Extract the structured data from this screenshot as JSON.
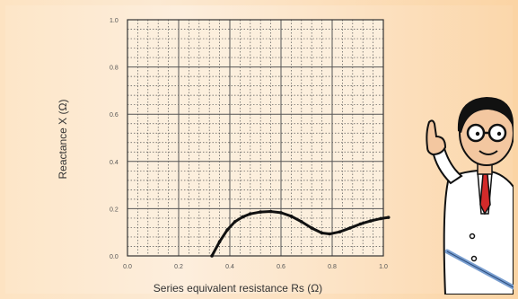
{
  "chart_data": {
    "type": "line",
    "title": "",
    "xlabel": "Series equivalent resistance  Rs  (Ω)",
    "ylabel": "Reactance  X  (Ω)",
    "xlim": [
      0,
      1.0
    ],
    "ylim": [
      0,
      1.0
    ],
    "x_ticks": [
      "0.0",
      "0.2",
      "0.4",
      "0.6",
      "0.8",
      "1.0"
    ],
    "y_ticks": [
      "0.0",
      "0.2",
      "0.4",
      "0.6",
      "0.8",
      "1.0"
    ],
    "grid": true,
    "series": [
      {
        "points": [
          [
            0.33,
            0.0
          ],
          [
            0.36,
            0.06
          ],
          [
            0.39,
            0.11
          ],
          [
            0.42,
            0.145
          ],
          [
            0.45,
            0.165
          ],
          [
            0.48,
            0.178
          ],
          [
            0.52,
            0.186
          ],
          [
            0.56,
            0.188
          ],
          [
            0.6,
            0.183
          ],
          [
            0.64,
            0.168
          ],
          [
            0.68,
            0.145
          ],
          [
            0.72,
            0.118
          ],
          [
            0.76,
            0.097
          ],
          [
            0.79,
            0.093
          ],
          [
            0.83,
            0.102
          ],
          [
            0.87,
            0.118
          ],
          [
            0.91,
            0.135
          ],
          [
            0.95,
            0.148
          ],
          [
            0.99,
            0.158
          ],
          [
            1.02,
            0.163
          ]
        ]
      }
    ],
    "colors": {
      "plot_bg": "#fcefdd",
      "grid": "#555555",
      "curve": "#111111"
    }
  },
  "illustration": {
    "icon": "scientist-pointing-icon"
  }
}
